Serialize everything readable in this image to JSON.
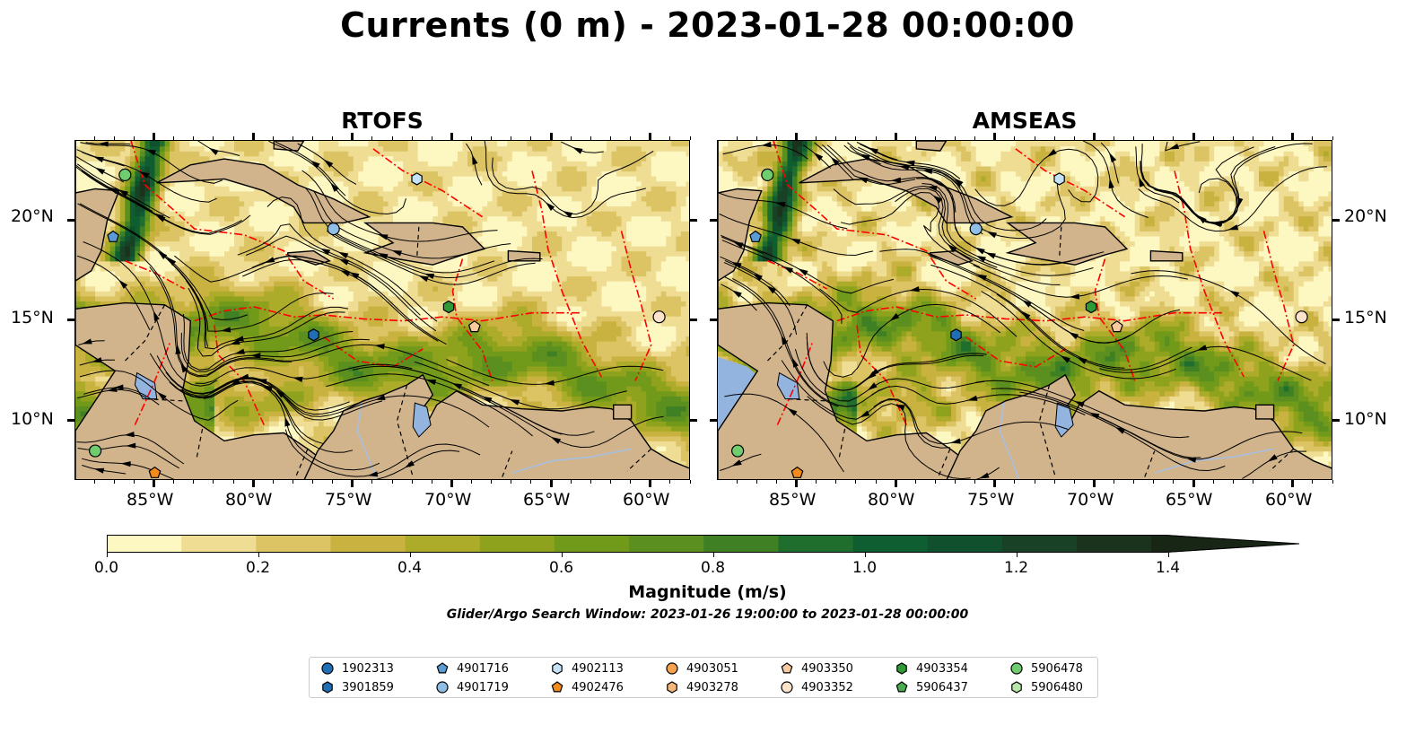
{
  "title": "Currents (0 m) - 2023-01-28 00:00:00",
  "panels": [
    {
      "name": "RTOFS"
    },
    {
      "name": "AMSEAS"
    }
  ],
  "axes": {
    "lat_labels": [
      "20°N",
      "15°N",
      "10°N"
    ],
    "lon_labels": [
      "85°W",
      "80°W",
      "75°W",
      "70°W",
      "65°W",
      "60°W"
    ]
  },
  "colorbar": {
    "ticks": [
      "0.0",
      "0.2",
      "0.4",
      "0.6",
      "0.8",
      "1.0",
      "1.2",
      "1.4"
    ],
    "label": "Magnitude (m/s)",
    "colors": [
      "#fdf7c1",
      "#eedd93",
      "#dcc465",
      "#c9b23f",
      "#acac2a",
      "#8ea21d",
      "#729a1a",
      "#5b8f1f",
      "#3f8024",
      "#1f6e2d",
      "#0f5e31",
      "#11502c",
      "#194125",
      "#1b331c",
      "#182616"
    ]
  },
  "search_window": "Glider/Argo Search Window: 2023-01-26 19:00:00 to 2023-01-28 00:00:00",
  "legend": [
    {
      "id": "1902313",
      "marker": "circle",
      "color": "#1f6fb4"
    },
    {
      "id": "3901859",
      "marker": "hexagon",
      "color": "#1f6fb4"
    },
    {
      "id": "4901716",
      "marker": "pentagon",
      "color": "#5b9bd5"
    },
    {
      "id": "4901719",
      "marker": "circle",
      "color": "#8fbfe6"
    },
    {
      "id": "4902113",
      "marker": "hexagon",
      "color": "#c6e2f7"
    },
    {
      "id": "4902476",
      "marker": "pentagon",
      "color": "#f28a1c"
    },
    {
      "id": "4903051",
      "marker": "circle",
      "color": "#f4a24c"
    },
    {
      "id": "4903278",
      "marker": "hexagon",
      "color": "#f7b77a"
    },
    {
      "id": "4903350",
      "marker": "pentagon",
      "color": "#f9c9a0"
    },
    {
      "id": "4903352",
      "marker": "circle",
      "color": "#fde2cc"
    },
    {
      "id": "4903354",
      "marker": "hexagon",
      "color": "#2e9b35"
    },
    {
      "id": "5906437",
      "marker": "pentagon",
      "color": "#49ad4f"
    },
    {
      "id": "5906478",
      "marker": "circle",
      "color": "#6fcc6f"
    },
    {
      "id": "5906480",
      "marker": "hexagon",
      "color": "#b6e8a9"
    }
  ],
  "map_colors": {
    "land": "#d2b48c",
    "ocean_pacific_amseas": "#94b4e0",
    "eez": "#ff0000",
    "streamline": "#000000"
  },
  "markers_on_map": [
    {
      "id": "5906478",
      "lon": -86.5,
      "lat": 22.3
    },
    {
      "id": "4901716",
      "lon": -87.1,
      "lat": 19.2
    },
    {
      "id": "4901719",
      "lon": -76.0,
      "lat": 19.6
    },
    {
      "id": "4902113",
      "lon": -71.8,
      "lat": 22.1
    },
    {
      "id": "4903354",
      "lon": -70.2,
      "lat": 15.7
    },
    {
      "id": "4903350",
      "lon": -68.9,
      "lat": 14.7
    },
    {
      "id": "3901859",
      "lon": -77.0,
      "lat": 14.3
    },
    {
      "id": "4903352",
      "lon": -59.6,
      "lat": 15.2
    },
    {
      "id": "5906478",
      "lon": -88.0,
      "lat": 8.5
    },
    {
      "id": "4902476",
      "lon": -85.0,
      "lat": 7.4
    }
  ]
}
